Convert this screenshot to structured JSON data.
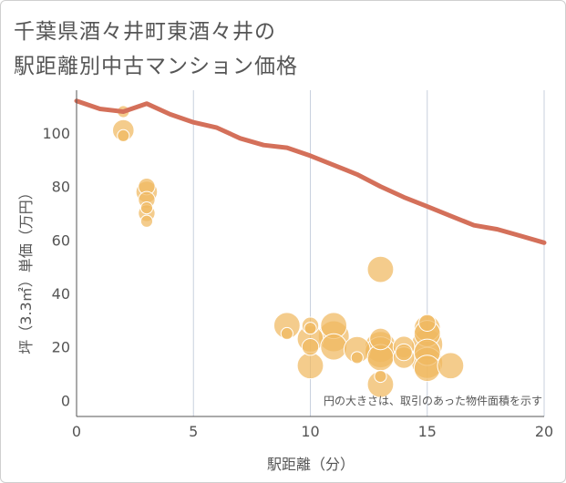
{
  "title_line1": "千葉県酒々井町東酒々井の",
  "title_line2": "駅距離別中古マンション価格",
  "note": "円の大きさは、取引のあった物件面積を示す",
  "colors": {
    "line": "#d4705a",
    "bubble_fill": "#f0b860",
    "bubble_stroke": "#ffffff",
    "grid": "#c8d0de",
    "axis": "#555555"
  },
  "chart_data": {
    "type": "scatter",
    "xlabel": "駅距離（分）",
    "ylabel": "坪（3.3㎡）単価（万円）",
    "xlim": [
      0,
      20
    ],
    "ylim": [
      -6,
      116
    ],
    "xticks": [
      0,
      5,
      10,
      15,
      20
    ],
    "yticks": [
      0,
      20,
      40,
      60,
      80,
      100
    ],
    "grid": true,
    "trend_line": {
      "x": [
        0,
        1,
        2,
        3,
        4,
        5,
        6,
        7,
        8,
        9,
        10,
        11,
        12,
        13,
        14,
        15,
        16,
        17,
        18,
        19,
        20
      ],
      "y": [
        112,
        109,
        108,
        111,
        107,
        104,
        102,
        98,
        95.5,
        94.5,
        91.5,
        88,
        84.5,
        80,
        76,
        72.5,
        69,
        65.5,
        64,
        61.5,
        59
      ]
    },
    "points": [
      {
        "x": 2,
        "y": 108,
        "size": 1
      },
      {
        "x": 2,
        "y": 101,
        "size": 3
      },
      {
        "x": 2,
        "y": 99,
        "size": 1
      },
      {
        "x": 3,
        "y": 80,
        "size": 2
      },
      {
        "x": 3,
        "y": 78,
        "size": 3
      },
      {
        "x": 3,
        "y": 75,
        "size": 2
      },
      {
        "x": 3,
        "y": 72,
        "size": 1
      },
      {
        "x": 3,
        "y": 70,
        "size": 2
      },
      {
        "x": 3,
        "y": 67,
        "size": 1
      },
      {
        "x": 9,
        "y": 28,
        "size": 4
      },
      {
        "x": 9,
        "y": 25,
        "size": 1
      },
      {
        "x": 10,
        "y": 28,
        "size": 2
      },
      {
        "x": 10,
        "y": 27,
        "size": 1
      },
      {
        "x": 10,
        "y": 23,
        "size": 4
      },
      {
        "x": 10,
        "y": 20,
        "size": 2
      },
      {
        "x": 10,
        "y": 13,
        "size": 4
      },
      {
        "x": 11,
        "y": 28,
        "size": 4
      },
      {
        "x": 11,
        "y": 24,
        "size": 5
      },
      {
        "x": 11,
        "y": 20,
        "size": 4
      },
      {
        "x": 12,
        "y": 19,
        "size": 4
      },
      {
        "x": 12,
        "y": 16,
        "size": 1
      },
      {
        "x": 13,
        "y": 49,
        "size": 4
      },
      {
        "x": 13,
        "y": 23,
        "size": 3
      },
      {
        "x": 13,
        "y": 20,
        "size": 5
      },
      {
        "x": 13,
        "y": 18,
        "size": 5
      },
      {
        "x": 13,
        "y": 16,
        "size": 4
      },
      {
        "x": 13,
        "y": 9,
        "size": 1
      },
      {
        "x": 13,
        "y": 6,
        "size": 4
      },
      {
        "x": 14,
        "y": 20,
        "size": 3
      },
      {
        "x": 14,
        "y": 18,
        "size": 2
      },
      {
        "x": 14,
        "y": 16,
        "size": 3
      },
      {
        "x": 15,
        "y": 29,
        "size": 2
      },
      {
        "x": 15,
        "y": 27,
        "size": 4
      },
      {
        "x": 15,
        "y": 25,
        "size": 4
      },
      {
        "x": 15,
        "y": 21,
        "size": 5
      },
      {
        "x": 15,
        "y": 18,
        "size": 4
      },
      {
        "x": 15,
        "y": 14,
        "size": 5
      },
      {
        "x": 15,
        "y": 12,
        "size": 4
      },
      {
        "x": 16,
        "y": 13,
        "size": 4
      }
    ]
  }
}
